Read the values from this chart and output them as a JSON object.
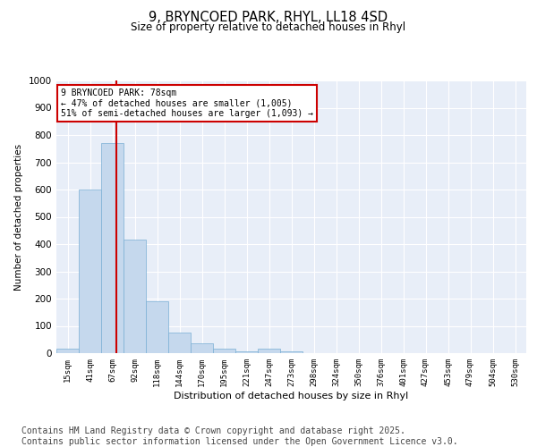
{
  "title_line1": "9, BRYNCOED PARK, RHYL, LL18 4SD",
  "title_line2": "Size of property relative to detached houses in Rhyl",
  "xlabel": "Distribution of detached houses by size in Rhyl",
  "ylabel": "Number of detached properties",
  "bin_labels": [
    "15sqm",
    "41sqm",
    "67sqm",
    "92sqm",
    "118sqm",
    "144sqm",
    "170sqm",
    "195sqm",
    "221sqm",
    "247sqm",
    "273sqm",
    "298sqm",
    "324sqm",
    "350sqm",
    "376sqm",
    "401sqm",
    "427sqm",
    "453sqm",
    "479sqm",
    "504sqm",
    "530sqm"
  ],
  "bar_values": [
    15,
    600,
    770,
    415,
    190,
    75,
    35,
    15,
    8,
    15,
    5,
    0,
    0,
    0,
    0,
    0,
    0,
    0,
    0,
    0,
    0
  ],
  "bar_color": "#c5d8ed",
  "bar_edgecolor": "#7aafd4",
  "vline_x_index": 2.18,
  "vline_color": "#cc0000",
  "annotation_text": "9 BRYNCOED PARK: 78sqm\n← 47% of detached houses are smaller (1,005)\n51% of semi-detached houses are larger (1,093) →",
  "annotation_box_color": "#cc0000",
  "annotation_text_color": "#000000",
  "ylim": [
    0,
    1000
  ],
  "yticks": [
    0,
    100,
    200,
    300,
    400,
    500,
    600,
    700,
    800,
    900,
    1000
  ],
  "background_color": "#e8eef8",
  "grid_color": "#ffffff",
  "footer_line1": "Contains HM Land Registry data © Crown copyright and database right 2025.",
  "footer_line2": "Contains public sector information licensed under the Open Government Licence v3.0.",
  "footer_fontsize": 7.0
}
